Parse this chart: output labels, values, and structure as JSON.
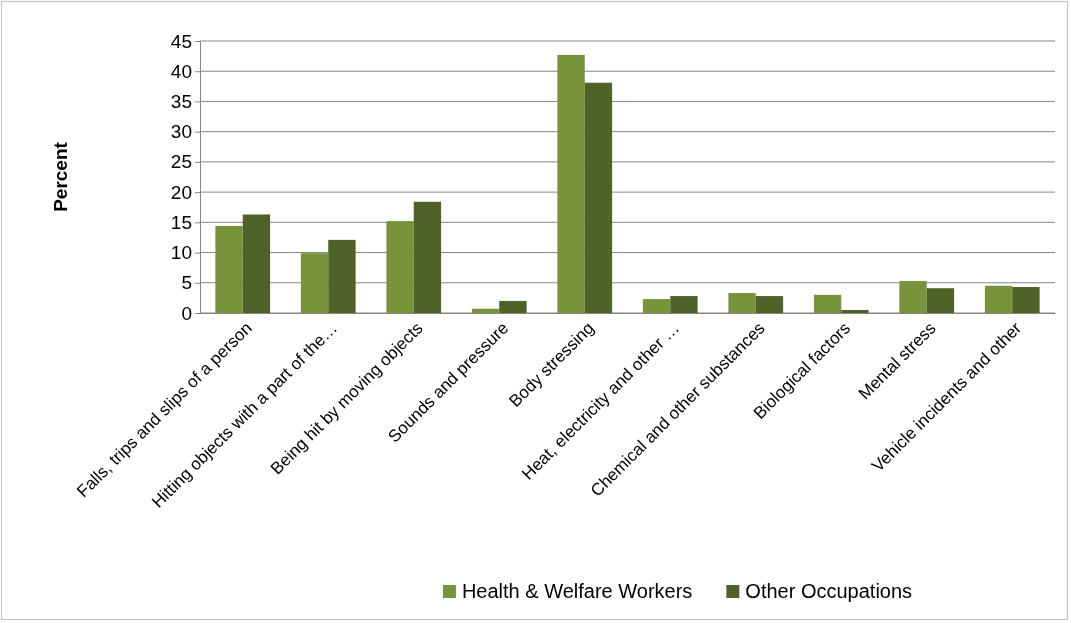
{
  "chart_data": {
    "type": "bar",
    "ylabel": "Percent",
    "categories": [
      "Falls, trips and slips of a person",
      "Hitting objects with a part of the…",
      "Being hit by moving objects",
      "Sounds and pressure",
      "Body stressing",
      "Heat, electricity and other …",
      "Chemical and other substances",
      "Biological factors",
      "Mental stress",
      "Vehicle incidents and other"
    ],
    "series": [
      {
        "name": "Health & Welfare Workers",
        "color": "#77933c",
        "values": [
          14.4,
          9.9,
          15.2,
          0.7,
          42.7,
          2.3,
          3.3,
          3.0,
          5.3,
          4.5
        ]
      },
      {
        "name": "Other Occupations",
        "color": "#4f6228",
        "values": [
          16.3,
          12.1,
          18.4,
          2.0,
          38.1,
          2.8,
          2.8,
          0.5,
          4.1,
          4.3
        ]
      }
    ],
    "ylim": [
      0,
      45
    ],
    "yticks": [
      0,
      5,
      10,
      15,
      20,
      25,
      30,
      35,
      40,
      45
    ],
    "grid": "y",
    "legend": "bottom"
  }
}
